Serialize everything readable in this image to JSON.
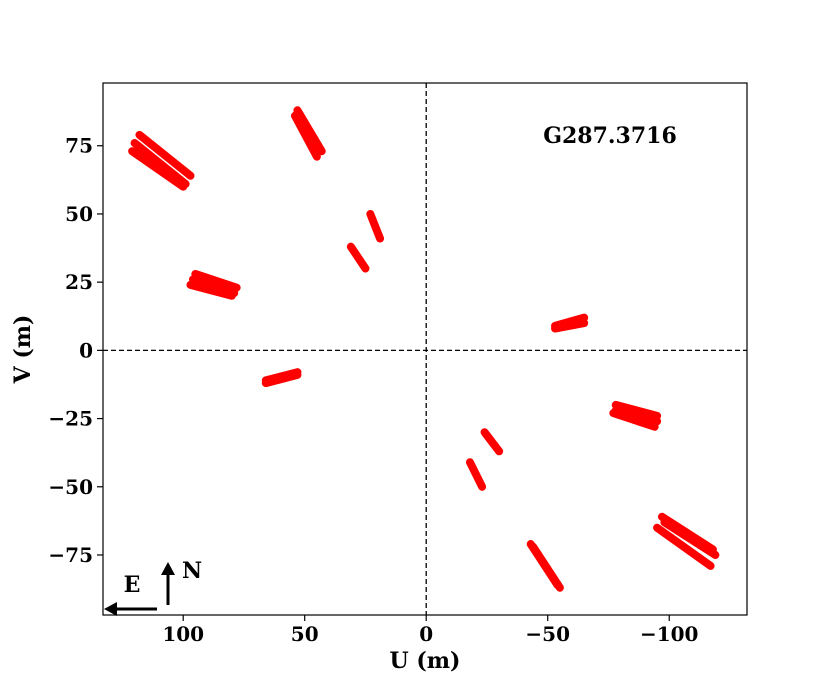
{
  "chart_data": {
    "type": "scatter",
    "annotation": "G287.3716",
    "xlabel": "U (m)",
    "ylabel": "V (m)",
    "xlim": [
      133,
      -132
    ],
    "ylim": [
      -97,
      98
    ],
    "xticks": [
      100,
      50,
      0,
      -50,
      -100
    ],
    "xtick_labels": [
      "100",
      "50",
      "0",
      "−50",
      "−100"
    ],
    "yticks": [
      75,
      50,
      25,
      0,
      -25,
      -50,
      -75
    ],
    "ytick_labels": [
      "75",
      "50",
      "25",
      "0",
      "−25",
      "−50",
      "−75"
    ],
    "reference_lines": {
      "x": 0,
      "y": 0,
      "style": "dashed"
    },
    "grid": false,
    "marker_color": "#ff0000",
    "tracks": [
      {
        "x": [
          118,
          97
        ],
        "y": [
          79,
          64
        ]
      },
      {
        "x": [
          120,
          99
        ],
        "y": [
          76,
          61
        ]
      },
      {
        "x": [
          121,
          100
        ],
        "y": [
          73,
          60
        ]
      },
      {
        "x": [
          53,
          43
        ],
        "y": [
          88,
          73
        ]
      },
      {
        "x": [
          54,
          45
        ],
        "y": [
          86,
          71
        ]
      },
      {
        "x": [
          23,
          19
        ],
        "y": [
          50,
          41
        ]
      },
      {
        "x": [
          31,
          25
        ],
        "y": [
          38,
          30
        ]
      },
      {
        "x": [
          95,
          78
        ],
        "y": [
          28,
          23
        ]
      },
      {
        "x": [
          96,
          79
        ],
        "y": [
          26,
          21
        ]
      },
      {
        "x": [
          97,
          80
        ],
        "y": [
          24,
          20
        ]
      },
      {
        "x": [
          -53,
          -65
        ],
        "y": [
          9,
          12
        ]
      },
      {
        "x": [
          -53,
          -65
        ],
        "y": [
          8,
          10
        ]
      },
      {
        "x": [
          53,
          66
        ],
        "y": [
          -8,
          -11
        ]
      },
      {
        "x": [
          53,
          66
        ],
        "y": [
          -9,
          -12
        ]
      },
      {
        "x": [
          -78,
          -95
        ],
        "y": [
          -20,
          -24
        ]
      },
      {
        "x": [
          -78,
          -95
        ],
        "y": [
          -22,
          -26
        ]
      },
      {
        "x": [
          -77,
          -94
        ],
        "y": [
          -23,
          -28
        ]
      },
      {
        "x": [
          -24,
          -30
        ],
        "y": [
          -30,
          -37
        ]
      },
      {
        "x": [
          -18,
          -23
        ],
        "y": [
          -41,
          -50
        ]
      },
      {
        "x": [
          -43,
          -54
        ],
        "y": [
          -71,
          -86
        ]
      },
      {
        "x": [
          -44,
          -55
        ],
        "y": [
          -72,
          -87
        ]
      },
      {
        "x": [
          -97,
          -118
        ],
        "y": [
          -61,
          -73
        ]
      },
      {
        "x": [
          -98,
          -119
        ],
        "y": [
          -63,
          -75
        ]
      },
      {
        "x": [
          -95,
          -117
        ],
        "y": [
          -65,
          -79
        ]
      }
    ],
    "compass": {
      "east_label": "E",
      "north_label": "N"
    }
  }
}
